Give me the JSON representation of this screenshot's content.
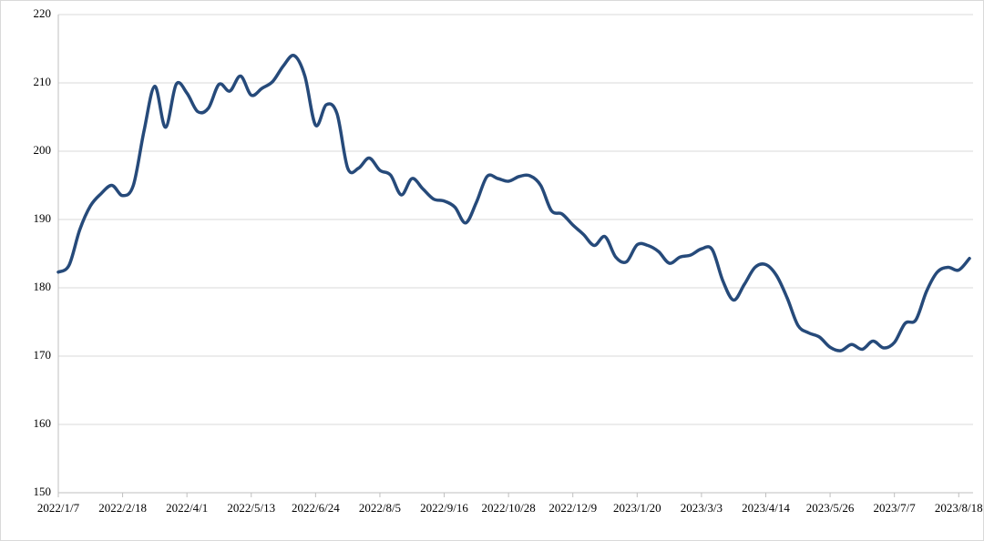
{
  "chart_data": {
    "type": "line",
    "categories": [
      "2022/1/7",
      null,
      null,
      null,
      null,
      null,
      "2022/2/18",
      null,
      null,
      null,
      null,
      null,
      "2022/4/1",
      null,
      null,
      null,
      null,
      null,
      "2022/5/13",
      null,
      null,
      null,
      null,
      null,
      "2022/6/24",
      null,
      null,
      null,
      null,
      null,
      "2022/8/5",
      null,
      null,
      null,
      null,
      null,
      "2022/9/16",
      null,
      null,
      null,
      null,
      null,
      "2022/10/28",
      null,
      null,
      null,
      null,
      null,
      "2022/12/9",
      null,
      null,
      null,
      null,
      null,
      "2023/1/20",
      null,
      null,
      null,
      null,
      null,
      "2023/3/3",
      null,
      null,
      null,
      null,
      null,
      "2023/4/14",
      null,
      null,
      null,
      null,
      null,
      "2023/5/26",
      null,
      null,
      null,
      null,
      null,
      "2023/7/7",
      null,
      null,
      null,
      null,
      null,
      "2023/8/18",
      null
    ],
    "series": [
      {
        "color": "#264a7a",
        "values": [
          182.3,
          183.3,
          188.5,
          192,
          193.8,
          195,
          193.5,
          195,
          203,
          209.5,
          203.5,
          209.8,
          208.5,
          205.8,
          206.3,
          209.8,
          208.8,
          211,
          208.2,
          209.2,
          210.2,
          212.5,
          214,
          211,
          203.8,
          206.8,
          205.5,
          197.5,
          197.5,
          199,
          197.2,
          196.5,
          193.6,
          196,
          194.5,
          193,
          192.7,
          191.8,
          189.5,
          192.5,
          196.3,
          196,
          195.6,
          196.3,
          196.4,
          195,
          191.3,
          190.8,
          189.2,
          187.8,
          186.2,
          187.5,
          184.5,
          183.8,
          186.3,
          186.2,
          185.3,
          183.6,
          184.5,
          184.8,
          185.7,
          185.6,
          181,
          178.2,
          180.5,
          183,
          183.4,
          181.8,
          178.5,
          174.5,
          173.4,
          172.8,
          171.3,
          170.8,
          171.7,
          171,
          172.2,
          171.2,
          172,
          174.8,
          175.3,
          179.5,
          182.3,
          183,
          182.6,
          184.3
        ]
      }
    ],
    "ylim": [
      150,
      220
    ],
    "yticks": [
      150,
      160,
      170,
      180,
      190,
      200,
      210,
      220
    ],
    "grid": true
  }
}
